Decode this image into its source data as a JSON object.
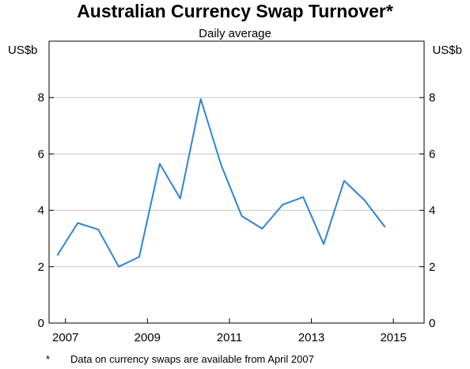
{
  "chart_data": {
    "type": "line",
    "title": "Australian Currency Swap Turnover*",
    "subtitle": "Daily average",
    "unit_left": "US$b",
    "unit_right": "US$b",
    "ylim": [
      0,
      10
    ],
    "yticks": [
      0,
      2,
      4,
      6,
      8
    ],
    "xlim": [
      2006.6,
      2015.75
    ],
    "xticks": [
      2007,
      2009,
      2011,
      2013,
      2015
    ],
    "grid": true,
    "series": [
      {
        "color": "#2f84d6",
        "points": [
          {
            "x": 2006.8,
            "y": 2.4
          },
          {
            "x": 2007.3,
            "y": 3.55
          },
          {
            "x": 2007.8,
            "y": 3.32
          },
          {
            "x": 2008.3,
            "y": 2.0
          },
          {
            "x": 2008.8,
            "y": 2.35
          },
          {
            "x": 2009.3,
            "y": 5.65
          },
          {
            "x": 2009.8,
            "y": 4.42
          },
          {
            "x": 2010.3,
            "y": 7.95
          },
          {
            "x": 2010.8,
            "y": 5.6
          },
          {
            "x": 2011.3,
            "y": 3.8
          },
          {
            "x": 2011.8,
            "y": 3.35
          },
          {
            "x": 2012.3,
            "y": 4.2
          },
          {
            "x": 2012.8,
            "y": 4.47
          },
          {
            "x": 2013.3,
            "y": 2.8
          },
          {
            "x": 2013.8,
            "y": 5.05
          },
          {
            "x": 2014.3,
            "y": 4.35
          },
          {
            "x": 2014.8,
            "y": 3.4
          }
        ]
      }
    ],
    "footnote": {
      "marker": "*",
      "text": "Data on currency swaps are available from April 2007"
    }
  }
}
